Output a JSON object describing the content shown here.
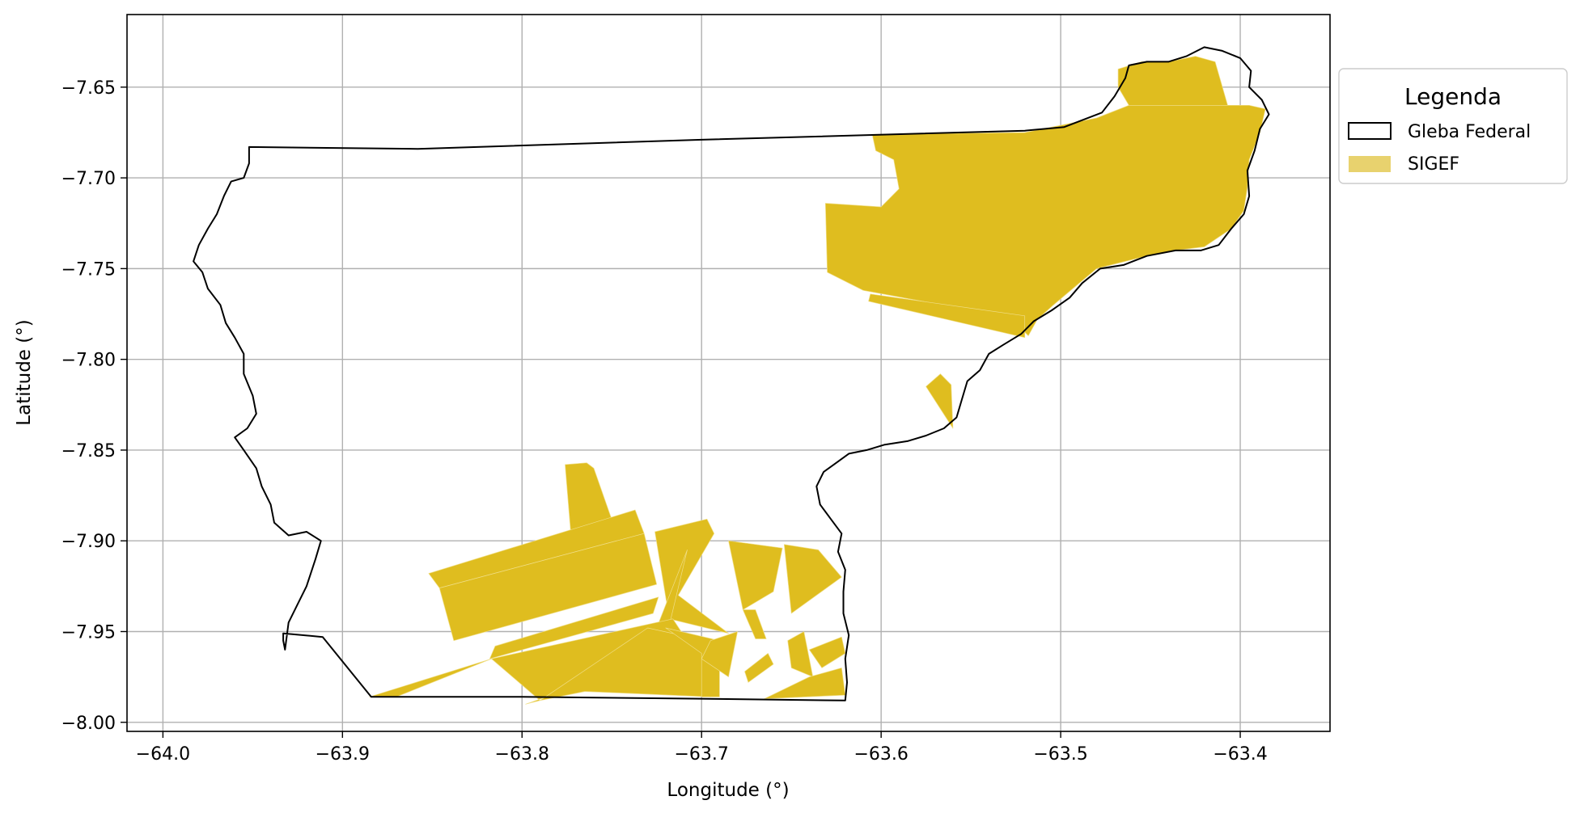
{
  "chart_data": {
    "type": "map",
    "xlabel": "Longitude (°)",
    "ylabel": "Latitude (°)",
    "xlim": [
      -64.02,
      -63.35
    ],
    "ylim": [
      -8.005,
      -7.61
    ],
    "xticks": [
      -64.0,
      -63.9,
      -63.8,
      -63.7,
      -63.6,
      -63.5,
      -63.4
    ],
    "xtick_labels": [
      "−64.0",
      "−63.9",
      "−63.8",
      "−63.7",
      "−63.6",
      "−63.5",
      "−63.4"
    ],
    "yticks": [
      -7.65,
      -7.7,
      -7.75,
      -7.8,
      -7.85,
      -7.9,
      -7.95,
      -8.0
    ],
    "ytick_labels": [
      "−7.65",
      "−7.70",
      "−7.75",
      "−7.80",
      "−7.85",
      "−7.90",
      "−7.95",
      "−8.00"
    ],
    "grid": true,
    "legend": {
      "title": "Legenda",
      "placement": "outside-right-top",
      "entries": [
        {
          "label": "Gleba Federal",
          "style": "outline",
          "edge_color": "#000000",
          "fill_color": "#ffffff"
        },
        {
          "label": "SIGEF",
          "style": "fill",
          "fill_color": "#e8d26e"
        }
      ]
    },
    "colors": {
      "boundary": "#000000",
      "sigef_fill": "#dfbd1f",
      "sigef_edge": "#f0de86",
      "grid": "#b0b0b0"
    },
    "gleba_federal_boundary": [
      [
        -63.952,
        -7.683
      ],
      [
        -63.858,
        -7.684
      ],
      [
        -63.7,
        -7.679
      ],
      [
        -63.52,
        -7.674
      ],
      [
        -63.498,
        -7.672
      ],
      [
        -63.477,
        -7.664
      ],
      [
        -63.47,
        -7.655
      ],
      [
        -63.464,
        -7.645
      ],
      [
        -63.462,
        -7.638
      ],
      [
        -63.452,
        -7.636
      ],
      [
        -63.44,
        -7.636
      ],
      [
        -63.43,
        -7.633
      ],
      [
        -63.42,
        -7.628
      ],
      [
        -63.41,
        -7.63
      ],
      [
        -63.4,
        -7.634
      ],
      [
        -63.394,
        -7.641
      ],
      [
        -63.395,
        -7.65
      ],
      [
        -63.388,
        -7.657
      ],
      [
        -63.384,
        -7.665
      ],
      [
        -63.389,
        -7.673
      ],
      [
        -63.392,
        -7.685
      ],
      [
        -63.396,
        -7.696
      ],
      [
        -63.395,
        -7.71
      ],
      [
        -63.398,
        -7.72
      ],
      [
        -63.405,
        -7.728
      ],
      [
        -63.412,
        -7.737
      ],
      [
        -63.422,
        -7.74
      ],
      [
        -63.436,
        -7.74
      ],
      [
        -63.452,
        -7.743
      ],
      [
        -63.465,
        -7.748
      ],
      [
        -63.478,
        -7.75
      ],
      [
        -63.488,
        -7.758
      ],
      [
        -63.495,
        -7.766
      ],
      [
        -63.505,
        -7.773
      ],
      [
        -63.515,
        -7.779
      ],
      [
        -63.522,
        -7.786
      ],
      [
        -63.532,
        -7.792
      ],
      [
        -63.54,
        -7.797
      ],
      [
        -63.545,
        -7.806
      ],
      [
        -63.552,
        -7.812
      ],
      [
        -63.555,
        -7.822
      ],
      [
        -63.558,
        -7.832
      ],
      [
        -63.565,
        -7.838
      ],
      [
        -63.575,
        -7.842
      ],
      [
        -63.585,
        -7.845
      ],
      [
        -63.598,
        -7.847
      ],
      [
        -63.608,
        -7.85
      ],
      [
        -63.618,
        -7.852
      ],
      [
        -63.625,
        -7.857
      ],
      [
        -63.632,
        -7.862
      ],
      [
        -63.636,
        -7.87
      ],
      [
        -63.634,
        -7.88
      ],
      [
        -63.628,
        -7.888
      ],
      [
        -63.622,
        -7.896
      ],
      [
        -63.624,
        -7.906
      ],
      [
        -63.62,
        -7.916
      ],
      [
        -63.621,
        -7.928
      ],
      [
        -63.621,
        -7.94
      ],
      [
        -63.618,
        -7.952
      ],
      [
        -63.62,
        -7.965
      ],
      [
        -63.619,
        -7.978
      ],
      [
        -63.62,
        -7.988
      ],
      [
        -63.7,
        -7.987
      ],
      [
        -63.8,
        -7.986
      ],
      [
        -63.884,
        -7.986
      ],
      [
        -63.911,
        -7.953
      ],
      [
        -63.933,
        -7.951
      ],
      [
        -63.933,
        -7.955
      ],
      [
        -63.932,
        -7.96
      ],
      [
        -63.93,
        -7.945
      ],
      [
        -63.925,
        -7.935
      ],
      [
        -63.92,
        -7.925
      ],
      [
        -63.915,
        -7.91
      ],
      [
        -63.912,
        -7.9
      ],
      [
        -63.92,
        -7.895
      ],
      [
        -63.93,
        -7.897
      ],
      [
        -63.938,
        -7.89
      ],
      [
        -63.94,
        -7.88
      ],
      [
        -63.945,
        -7.87
      ],
      [
        -63.948,
        -7.86
      ],
      [
        -63.955,
        -7.85
      ],
      [
        -63.96,
        -7.843
      ],
      [
        -63.953,
        -7.838
      ],
      [
        -63.948,
        -7.83
      ],
      [
        -63.95,
        -7.82
      ],
      [
        -63.955,
        -7.808
      ],
      [
        -63.955,
        -7.797
      ],
      [
        -63.96,
        -7.788
      ],
      [
        -63.965,
        -7.78
      ],
      [
        -63.968,
        -7.77
      ],
      [
        -63.975,
        -7.761
      ],
      [
        -63.978,
        -7.752
      ],
      [
        -63.983,
        -7.746
      ],
      [
        -63.98,
        -7.737
      ],
      [
        -63.975,
        -7.728
      ],
      [
        -63.97,
        -7.72
      ],
      [
        -63.966,
        -7.71
      ],
      [
        -63.962,
        -7.702
      ],
      [
        -63.955,
        -7.7
      ],
      [
        -63.952,
        -7.692
      ],
      [
        -63.952,
        -7.683
      ]
    ],
    "sigef_parcels": [
      [
        [
          -63.395,
          -7.66
        ],
        [
          -63.386,
          -7.662
        ],
        [
          -63.389,
          -7.675
        ],
        [
          -63.395,
          -7.69
        ],
        [
          -63.396,
          -7.705
        ],
        [
          -63.398,
          -7.718
        ],
        [
          -63.405,
          -7.728
        ],
        [
          -63.42,
          -7.738
        ],
        [
          -63.436,
          -7.74
        ],
        [
          -63.452,
          -7.743
        ],
        [
          -63.468,
          -7.747
        ],
        [
          -63.48,
          -7.75
        ],
        [
          -63.492,
          -7.76
        ],
        [
          -63.504,
          -7.77
        ],
        [
          -63.513,
          -7.778
        ],
        [
          -63.518,
          -7.787
        ],
        [
          -63.523,
          -7.782
        ],
        [
          -63.533,
          -7.776
        ],
        [
          -63.61,
          -7.762
        ],
        [
          -63.63,
          -7.752
        ],
        [
          -63.631,
          -7.714
        ],
        [
          -63.6,
          -7.716
        ],
        [
          -63.59,
          -7.706
        ],
        [
          -63.593,
          -7.69
        ],
        [
          -63.603,
          -7.685
        ],
        [
          -63.605,
          -7.676
        ],
        [
          -63.52,
          -7.675
        ],
        [
          -63.48,
          -7.667
        ],
        [
          -63.462,
          -7.66
        ]
      ],
      [
        [
          -63.462,
          -7.66
        ],
        [
          -63.468,
          -7.65
        ],
        [
          -63.468,
          -7.64
        ],
        [
          -63.455,
          -7.636
        ],
        [
          -63.44,
          -7.636
        ],
        [
          -63.425,
          -7.633
        ],
        [
          -63.414,
          -7.636
        ],
        [
          -63.407,
          -7.66
        ]
      ],
      [
        [
          -63.606,
          -7.764
        ],
        [
          -63.52,
          -7.776
        ],
        [
          -63.52,
          -7.788
        ],
        [
          -63.607,
          -7.768
        ]
      ],
      [
        [
          -63.575,
          -7.815
        ],
        [
          -63.567,
          -7.808
        ],
        [
          -63.561,
          -7.814
        ],
        [
          -63.56,
          -7.838
        ]
      ],
      [
        [
          -63.776,
          -7.858
        ],
        [
          -63.764,
          -7.857
        ],
        [
          -63.76,
          -7.86
        ],
        [
          -63.748,
          -7.894
        ],
        [
          -63.773,
          -7.894
        ]
      ],
      [
        [
          -63.852,
          -7.918
        ],
        [
          -63.737,
          -7.883
        ],
        [
          -63.732,
          -7.896
        ],
        [
          -63.846,
          -7.926
        ]
      ],
      [
        [
          -63.846,
          -7.926
        ],
        [
          -63.732,
          -7.896
        ],
        [
          -63.725,
          -7.924
        ],
        [
          -63.838,
          -7.955
        ]
      ],
      [
        [
          -63.726,
          -7.895
        ],
        [
          -63.697,
          -7.888
        ],
        [
          -63.693,
          -7.896
        ],
        [
          -63.713,
          -7.93
        ],
        [
          -63.685,
          -7.951
        ],
        [
          -63.718,
          -7.943
        ]
      ],
      [
        [
          -63.708,
          -7.905
        ],
        [
          -63.72,
          -7.955
        ],
        [
          -63.725,
          -7.948
        ]
      ],
      [
        [
          -63.685,
          -7.9
        ],
        [
          -63.677,
          -7.938
        ],
        [
          -63.66,
          -7.928
        ],
        [
          -63.655,
          -7.904
        ]
      ],
      [
        [
          -63.677,
          -7.938
        ],
        [
          -63.67,
          -7.954
        ],
        [
          -63.664,
          -7.954
        ],
        [
          -63.67,
          -7.938
        ]
      ],
      [
        [
          -63.654,
          -7.902
        ],
        [
          -63.635,
          -7.905
        ],
        [
          -63.622,
          -7.92
        ],
        [
          -63.65,
          -7.94
        ]
      ],
      [
        [
          -63.815,
          -7.958
        ],
        [
          -63.724,
          -7.931
        ],
        [
          -63.727,
          -7.94
        ],
        [
          -63.818,
          -7.965
        ]
      ],
      [
        [
          -63.817,
          -7.965
        ],
        [
          -63.716,
          -7.943
        ],
        [
          -63.706,
          -7.958
        ],
        [
          -63.798,
          -7.99
        ],
        [
          -63.79,
          -7.988
        ]
      ],
      [
        [
          -63.817,
          -7.965
        ],
        [
          -63.87,
          -7.986
        ],
        [
          -63.885,
          -7.986
        ]
      ],
      [
        [
          -63.73,
          -7.948
        ],
        [
          -63.698,
          -7.955
        ],
        [
          -63.695,
          -7.986
        ],
        [
          -63.765,
          -7.983
        ],
        [
          -63.79,
          -7.988
        ]
      ],
      [
        [
          -63.72,
          -7.948
        ],
        [
          -63.7,
          -7.962
        ],
        [
          -63.7,
          -7.986
        ],
        [
          -63.69,
          -7.986
        ],
        [
          -63.69,
          -7.955
        ]
      ],
      [
        [
          -63.695,
          -7.955
        ],
        [
          -63.68,
          -7.95
        ],
        [
          -63.685,
          -7.975
        ],
        [
          -63.7,
          -7.965
        ]
      ],
      [
        [
          -63.66,
          -7.968
        ],
        [
          -63.674,
          -7.978
        ],
        [
          -63.676,
          -7.972
        ],
        [
          -63.663,
          -7.962
        ]
      ],
      [
        [
          -63.652,
          -7.955
        ],
        [
          -63.643,
          -7.95
        ],
        [
          -63.638,
          -7.975
        ],
        [
          -63.65,
          -7.97
        ]
      ],
      [
        [
          -63.64,
          -7.96
        ],
        [
          -63.622,
          -7.953
        ],
        [
          -63.62,
          -7.962
        ],
        [
          -63.633,
          -7.97
        ]
      ],
      [
        [
          -63.622,
          -7.97
        ],
        [
          -63.62,
          -7.985
        ],
        [
          -63.642,
          -7.986
        ],
        [
          -63.665,
          -7.987
        ],
        [
          -63.64,
          -7.975
        ]
      ]
    ]
  }
}
